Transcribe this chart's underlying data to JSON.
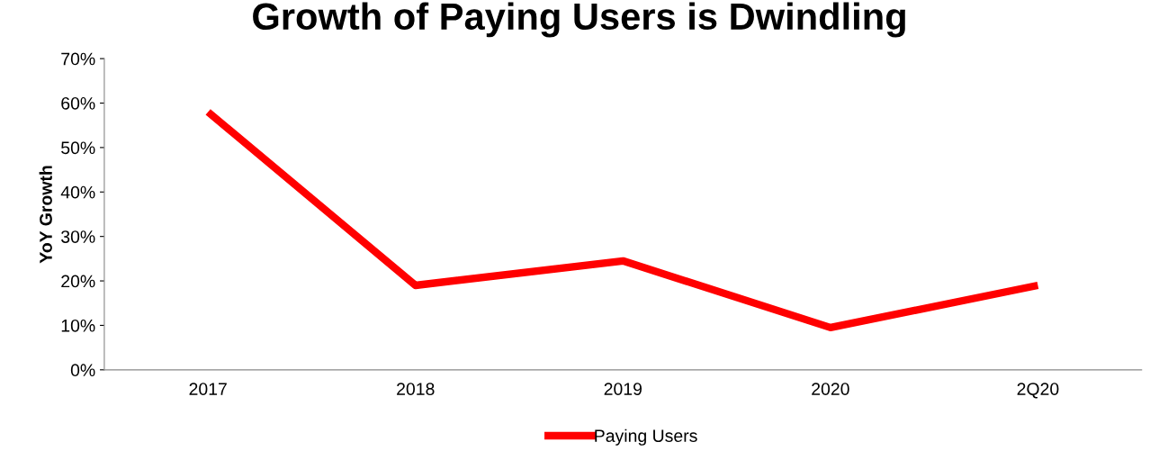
{
  "chart_data": {
    "type": "line",
    "title": "Growth of Paying Users is Dwindling",
    "ylabel": "YoY Growth",
    "categories": [
      "2017",
      "2018",
      "2019",
      "2020",
      "2Q20"
    ],
    "series": [
      {
        "name": "Paying Users",
        "color": "#ff0000",
        "values": [
          58,
          19,
          24.5,
          9.5,
          19
        ]
      }
    ],
    "ylim": [
      0,
      70
    ],
    "yticks": [
      {
        "value": 0,
        "label": "0%"
      },
      {
        "value": 10,
        "label": "10%"
      },
      {
        "value": 20,
        "label": "20%"
      },
      {
        "value": 30,
        "label": "30%"
      },
      {
        "value": 40,
        "label": "40%"
      },
      {
        "value": 50,
        "label": "50%"
      },
      {
        "value": 60,
        "label": "60%"
      },
      {
        "value": 70,
        "label": "70%"
      }
    ],
    "grid": false,
    "legend": "bottom",
    "marker": "none",
    "line_style": "solid"
  }
}
